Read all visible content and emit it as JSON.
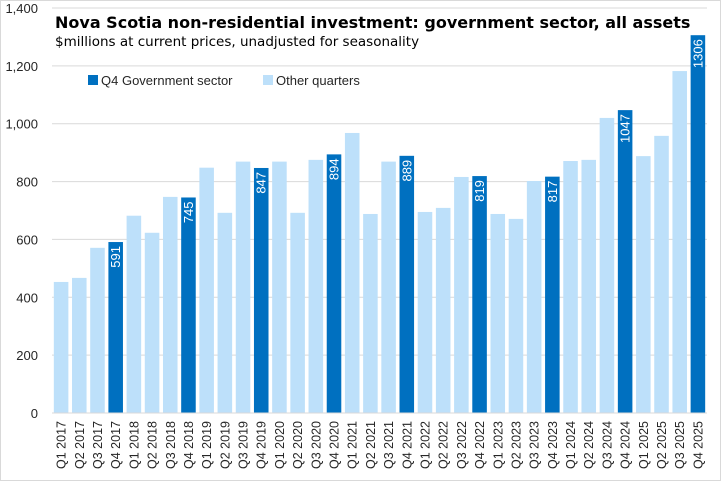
{
  "chart_data": {
    "type": "bar",
    "title": "Nova Scotia non-residential investment: government sector, all assets",
    "subtitle": "$millions at current prices, unadjusted for seasonality",
    "xlabel": "",
    "ylabel": "",
    "ylim": [
      0,
      1400
    ],
    "yticks": [
      0,
      200,
      400,
      600,
      800,
      1000,
      1200,
      1400
    ],
    "ytick_labels": [
      "0",
      "200",
      "400",
      "600",
      "800",
      "1,000",
      "1,200",
      "1,400"
    ],
    "grid": true,
    "legend_position": "top-left",
    "legend": [
      {
        "name": "Q4 Government sector",
        "color": "#0070c0"
      },
      {
        "name": "Other quarters",
        "color": "#bde0fa"
      }
    ],
    "categories": [
      "Q1 2017",
      "Q2 2017",
      "Q3 2017",
      "Q4 2017",
      "Q1 2018",
      "Q2 2018",
      "Q3 2018",
      "Q4 2018",
      "Q1 2019",
      "Q2 2019",
      "Q3 2019",
      "Q4 2019",
      "Q1 2020",
      "Q2 2020",
      "Q3 2020",
      "Q4 2020",
      "Q1 2021",
      "Q2 2021",
      "Q3 2021",
      "Q4 2021",
      "Q1 2022",
      "Q2 2022",
      "Q3 2022",
      "Q4 2022",
      "Q1 2023",
      "Q2 2023",
      "Q3 2023",
      "Q4 2023",
      "Q1 2024",
      "Q2 2024",
      "Q3 2024",
      "Q4 2024",
      "Q1 2025",
      "Q2 2025",
      "Q3 2025",
      "Q4 2025"
    ],
    "values": [
      453,
      467,
      571,
      591,
      682,
      623,
      747,
      745,
      848,
      692,
      869,
      847,
      869,
      692,
      875,
      894,
      968,
      688,
      869,
      889,
      695,
      709,
      816,
      819,
      688,
      671,
      802,
      817,
      871,
      875,
      1020,
      1047,
      888,
      958,
      1182,
      1306
    ],
    "series_assignment": [
      "Other quarters",
      "Other quarters",
      "Other quarters",
      "Q4 Government sector",
      "Other quarters",
      "Other quarters",
      "Other quarters",
      "Q4 Government sector",
      "Other quarters",
      "Other quarters",
      "Other quarters",
      "Q4 Government sector",
      "Other quarters",
      "Other quarters",
      "Other quarters",
      "Q4 Government sector",
      "Other quarters",
      "Other quarters",
      "Other quarters",
      "Q4 Government sector",
      "Other quarters",
      "Other quarters",
      "Other quarters",
      "Q4 Government sector",
      "Other quarters",
      "Other quarters",
      "Other quarters",
      "Q4 Government sector",
      "Other quarters",
      "Other quarters",
      "Other quarters",
      "Q4 Government sector",
      "Other quarters",
      "Other quarters",
      "Other quarters",
      "Q4 Government sector"
    ],
    "data_labels": [
      "",
      "",
      "",
      "591",
      "",
      "",
      "",
      "745",
      "",
      "",
      "",
      "847",
      "",
      "",
      "",
      "894",
      "",
      "",
      "",
      "889",
      "",
      "",
      "",
      "819",
      "",
      "",
      "",
      "817",
      "",
      "",
      "",
      "1047",
      "",
      "",
      "",
      "1306"
    ]
  }
}
